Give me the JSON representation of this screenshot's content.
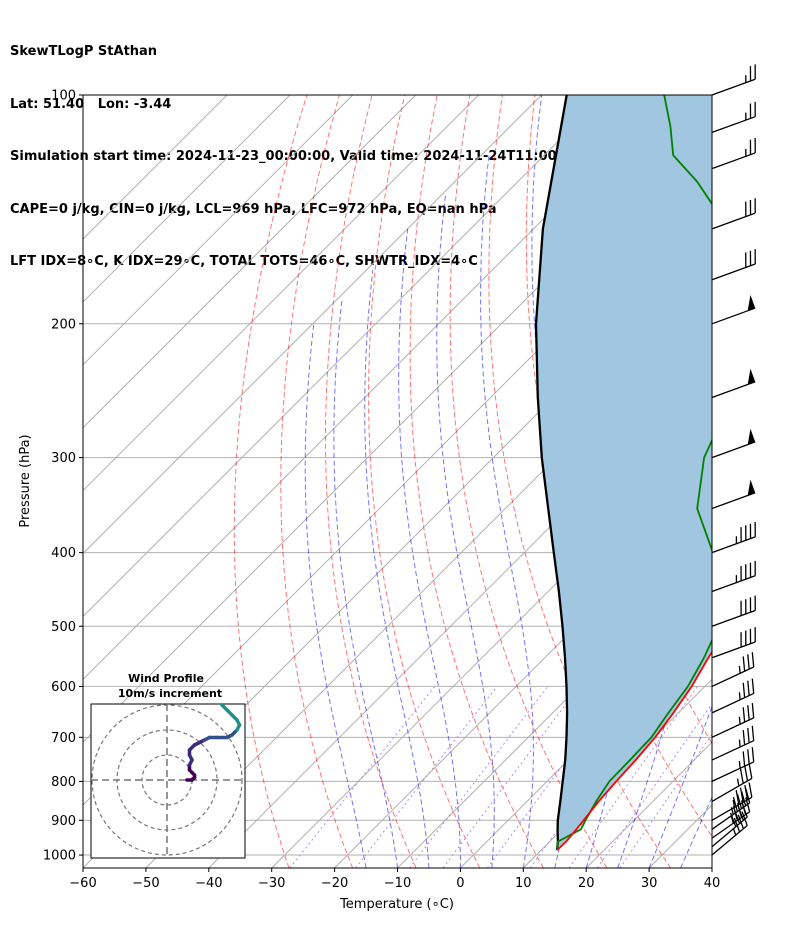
{
  "header": {
    "line1": "SkewTLogP StAthan",
    "line2": "Lat: 51.40   Lon: -3.44",
    "line3": "Simulation start time: 2024-11-23_00:00:00, Valid time: 2024-11-24T11:00:00.00",
    "line4": "CAPE=0 j/kg, CIN=0 j/kg, LCL=969 hPa, LFC=972 hPa, EQ=nan hPa",
    "line5": "LFT IDX=8∘C, K IDX=29∘C, TOTAL TOTS=46∘C, SHWTR_IDX=4∘C"
  },
  "chart_data": {
    "type": "skewt",
    "xlabel": "Temperature (∘C)",
    "ylabel": "Pressure (hPa)",
    "xlim": [
      -60,
      40
    ],
    "ylim": [
      1040,
      100
    ],
    "log_y": true,
    "grid": true,
    "x_ticks": [
      -60,
      -50,
      -40,
      -30,
      -20,
      -10,
      0,
      10,
      20,
      30,
      40
    ],
    "x_tick_labels": [
      "−60",
      "−50",
      "−40",
      "−30",
      "−20",
      "−10",
      "0",
      "10",
      "20",
      "30",
      "40"
    ],
    "y_ticks": [
      100,
      200,
      300,
      400,
      500,
      600,
      700,
      800,
      900,
      1000
    ],
    "y_tick_labels": [
      "100",
      "200",
      "300",
      "400",
      "500",
      "600",
      "700",
      "800",
      "900",
      "1000"
    ],
    "temperature_profile": {
      "color": "#ff0000",
      "p": [
        985,
        960,
        925,
        900,
        850,
        800,
        750,
        700,
        650,
        600,
        550,
        500,
        450,
        400,
        350,
        300,
        250,
        230,
        210,
        200,
        185,
        170,
        160,
        150,
        140,
        130,
        120,
        110,
        100
      ],
      "t": [
        12.5,
        12.6,
        12.3,
        12.0,
        11.4,
        11.0,
        10.7,
        10.2,
        9.2,
        7.9,
        6.0,
        4.2,
        1.4,
        -2.6,
        -7.5,
        -13.5,
        -21.5,
        -28.3,
        -33.5,
        -35.2,
        -38.0,
        -40.5,
        -43.5,
        -47.0,
        -52.5,
        -57.5,
        -62.5,
        -68.0,
        -73.0
      ]
    },
    "dewpoint_profile": {
      "color": "#008000",
      "p": [
        985,
        960,
        925,
        900,
        850,
        800,
        750,
        700,
        650,
        600,
        550,
        500,
        450,
        400,
        350,
        300,
        270,
        260,
        230,
        210,
        200,
        185,
        170,
        160,
        150,
        140,
        130,
        120,
        110,
        100
      ],
      "t": [
        12.5,
        11.3,
        13.0,
        12.3,
        11.0,
        9.9,
        9.8,
        9.6,
        8.4,
        7.3,
        5.3,
        2.6,
        -2.9,
        -10.0,
        -19.5,
        -26.5,
        -29.5,
        -30.3,
        -34.5,
        -38.3,
        -42.3,
        -45.0,
        -49.3,
        -52.3,
        -57.5,
        -65.0,
        -71.5,
        -79.5,
        -84.5,
        -90.5
      ]
    },
    "parcel_profile": {
      "color": "#000000",
      "p": [
        985,
        960,
        925,
        900,
        850,
        800,
        750,
        700,
        650,
        600,
        550,
        500,
        450,
        400,
        350,
        300,
        250,
        200,
        150,
        100
      ],
      "t": [
        12.5,
        11.3,
        9.3,
        7.9,
        5.3,
        2.5,
        -0.5,
        -3.9,
        -7.7,
        -12.0,
        -16.8,
        -22.2,
        -28.3,
        -35.3,
        -43.2,
        -52.3,
        -62.5,
        -74.5,
        -88.5,
        -106.0
      ]
    },
    "dry_adiabats": {
      "color": "#ff0000",
      "style": "dashed"
    },
    "moist_adiabats": {
      "color": "#0000ff",
      "style": "dashed"
    },
    "mixing_ratio_lines": {
      "color": "#0000ff",
      "style": "dashed"
    },
    "shading_color": "#a1c6df",
    "barbs": {
      "color": "#000000",
      "p": [
        1000,
        975,
        950,
        925,
        900,
        850,
        800,
        750,
        700,
        650,
        600,
        550,
        500,
        450,
        400,
        350,
        300,
        250,
        200,
        175,
        150,
        125,
        112,
        100
      ],
      "speed_kt": [
        35,
        40,
        45,
        45,
        45,
        35,
        35,
        35,
        35,
        35,
        35,
        40,
        40,
        45,
        45,
        50,
        50,
        50,
        50,
        30,
        30,
        25,
        25,
        25
      ],
      "dir_deg": [
        230,
        230,
        235,
        235,
        240,
        240,
        245,
        245,
        245,
        245,
        245,
        250,
        250,
        250,
        250,
        250,
        250,
        250,
        250,
        250,
        250,
        250,
        250,
        250
      ]
    },
    "hodograph": {
      "title_line1": "Wind Profile",
      "title_line2": "10m/s increment",
      "rings_ms": [
        10,
        20,
        30
      ],
      "u": [
        8,
        10,
        11,
        11,
        10,
        9,
        9,
        10,
        9,
        9,
        11,
        13,
        15,
        17,
        20,
        24,
        26,
        27,
        28,
        29,
        28,
        26,
        24,
        22,
        21,
        22,
        24,
        28,
        33,
        35,
        36,
        37,
        37,
        36,
        36,
        38,
        40
      ],
      "v": [
        0,
        0,
        1,
        2,
        3,
        4,
        6,
        8,
        10,
        12,
        14,
        15,
        16,
        17,
        17,
        17,
        18,
        19,
        20,
        22,
        24,
        26,
        28,
        30,
        32,
        33,
        34,
        34,
        35,
        35,
        34,
        31,
        28,
        23,
        20,
        18,
        16
      ],
      "colormap": [
        "#440154",
        "#3b2b7a",
        "#31508b",
        "#21908c",
        "#5ec962",
        "#b5de2b"
      ]
    }
  }
}
